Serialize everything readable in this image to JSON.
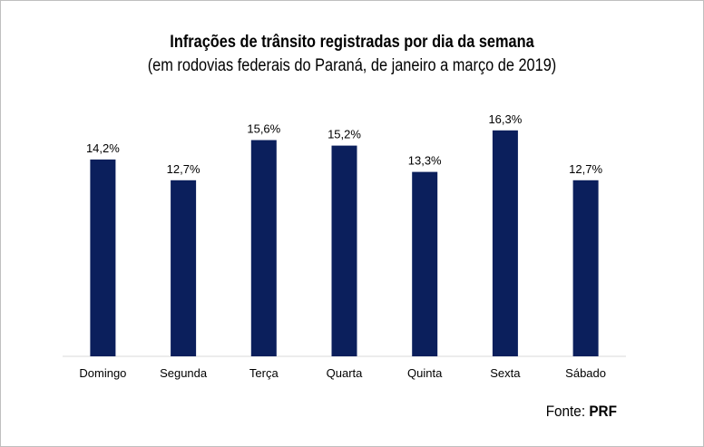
{
  "chart_data": {
    "type": "bar",
    "title": "Infrações de trânsito registradas por dia da semana",
    "subtitle": "(em rodovias federais do Paraná, de janeiro a março de 2019)",
    "categories": [
      "Domingo",
      "Segunda",
      "Terça",
      "Quarta",
      "Quinta",
      "Sexta",
      "Sábado"
    ],
    "values": [
      14.2,
      12.7,
      15.6,
      15.2,
      13.3,
      16.3,
      12.7
    ],
    "value_labels": [
      "14,2%",
      "12,7%",
      "15,6%",
      "15,2%",
      "13,3%",
      "16,3%",
      "12,7%"
    ],
    "unit": "%",
    "ylim": [
      0,
      17.2
    ],
    "grid": false,
    "bar_color": "#0b1f5c"
  },
  "source": {
    "prefix": "Fonte: ",
    "name": "PRF"
  }
}
